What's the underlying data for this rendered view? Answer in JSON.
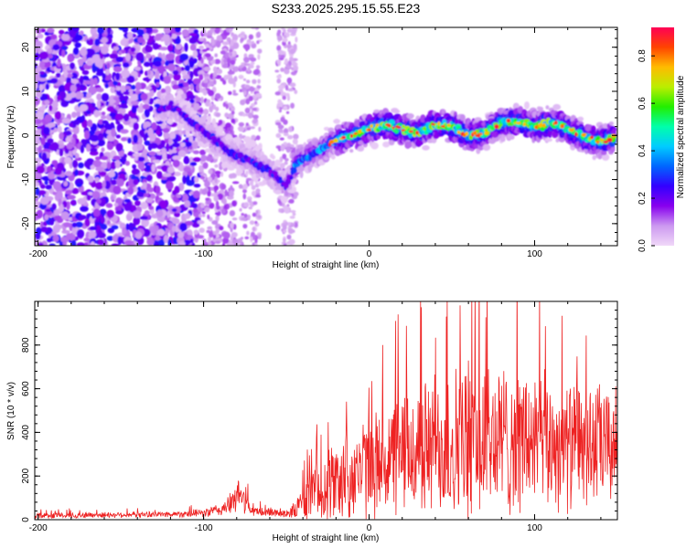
{
  "title": "S233.2025.295.15.55.E23",
  "chart_data": [
    {
      "type": "heatmap",
      "name": "spectrogram",
      "xlabel": "Height of straight line (km)",
      "ylabel": "Frequency (Hz)",
      "xlim": [
        -202,
        150
      ],
      "ylim": [
        -25,
        24.5
      ],
      "xticks": [
        -200,
        -100,
        0,
        100
      ],
      "yticks": [
        -20,
        -10,
        0,
        10,
        20
      ],
      "ridge": {
        "x": [
          -128,
          -118,
          -110,
          -100,
          -90,
          -80,
          -70,
          -60,
          -50,
          -43,
          -38,
          -30,
          -20,
          -10,
          0,
          10,
          20,
          30,
          40,
          50,
          60,
          70,
          80,
          90,
          100,
          110,
          120,
          130,
          140,
          148
        ],
        "y": [
          6,
          6.5,
          4,
          1,
          -2,
          -4.5,
          -6,
          -8,
          -11.5,
          -6,
          -5,
          -3.5,
          -1,
          0,
          1.5,
          2.5,
          1.5,
          0.5,
          2.5,
          2,
          0,
          0.5,
          3,
          3,
          2,
          3,
          1.5,
          -0.5,
          -1.5,
          -0.5
        ]
      },
      "colorbar": {
        "label": "Normalized spectral amplitude",
        "range": [
          0,
          0.92
        ],
        "ticks": [
          0.0,
          0.2,
          0.4,
          0.6,
          0.8
        ],
        "tick_labels": [
          "0.0",
          "0.2",
          "0.4",
          "0.6",
          "0.8"
        ],
        "colors": [
          "#f0d8f8",
          "#cc99f0",
          "#8800ee",
          "#3300ff",
          "#0066ff",
          "#00ccff",
          "#00ffaa",
          "#22ee00",
          "#bbee00",
          "#ffbb00",
          "#ff4400",
          "#ff0055"
        ]
      }
    },
    {
      "type": "line",
      "name": "snr",
      "xlabel": "Height of straight line (km)",
      "ylabel": "SNR (10 * v/v)",
      "xlim": [
        -202,
        150
      ],
      "ylim": [
        0,
        1000
      ],
      "xticks": [
        -200,
        -100,
        0,
        100
      ],
      "yticks": [
        0,
        200,
        400,
        600,
        800
      ],
      "color": "#ee2222",
      "envelope": {
        "x": [
          -202,
          -160,
          -120,
          -100,
          -90,
          -82,
          -78,
          -74,
          -70,
          -60,
          -50,
          -45,
          -35,
          -20,
          0,
          20,
          40,
          60,
          80,
          100,
          120,
          140,
          150
        ],
        "mean": [
          18,
          22,
          25,
          30,
          45,
          80,
          120,
          70,
          35,
          35,
          30,
          40,
          120,
          180,
          240,
          300,
          340,
          360,
          370,
          360,
          340,
          340,
          330
        ],
        "amp": [
          15,
          15,
          15,
          22,
          35,
          60,
          90,
          55,
          25,
          25,
          25,
          40,
          150,
          220,
          260,
          320,
          380,
          420,
          400,
          360,
          330,
          320,
          300
        ]
      }
    }
  ]
}
